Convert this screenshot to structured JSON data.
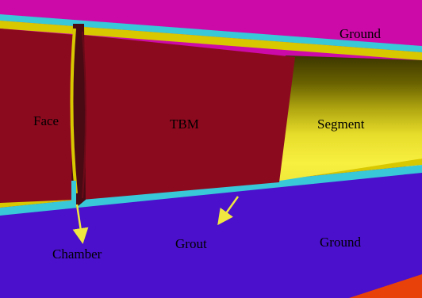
{
  "labels": {
    "ground_top": "Ground",
    "face": "Face",
    "tbm": "TBM",
    "segment": "Segment",
    "grout": "Grout",
    "ground_bottom": "Ground",
    "chamber": "Chamber"
  },
  "colors": {
    "ground_top": "#cc0aa8",
    "ground_bottom": "#4a10cc",
    "tbm": "#8c0a1e",
    "face": "#8c0a1e",
    "chamber": "#4a0a14",
    "shield_edge": "#d8c800",
    "grout": "#38c8d8",
    "segment_light": "#f8f040",
    "segment_dark": "#5a5200",
    "arrow": "#f0e840",
    "corner": "#e8420a"
  }
}
